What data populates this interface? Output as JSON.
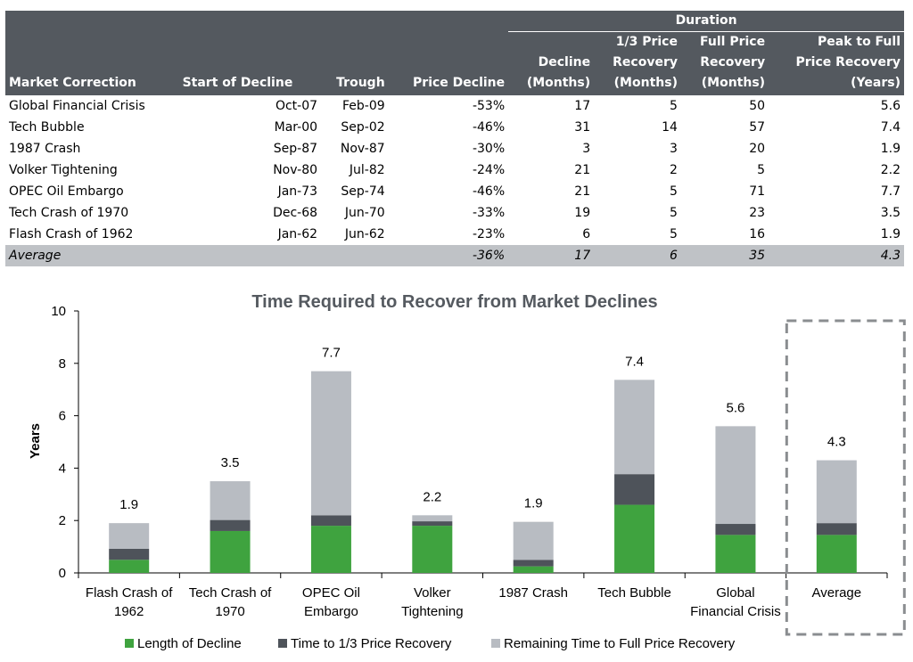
{
  "table": {
    "group_header": "Duration",
    "columns": [
      "Market Correction",
      "Start of Decline",
      "Trough",
      "Price Decline",
      [
        "Decline",
        "(Months)"
      ],
      [
        "1/3 Price",
        "Recovery",
        "(Months)"
      ],
      [
        "Full Price",
        "Recovery",
        "(Months)"
      ],
      [
        "Peak to Full",
        "Price Recovery",
        "(Years)"
      ]
    ],
    "rows": [
      [
        "Global Financial Crisis",
        "Oct-07",
        "Feb-09",
        "-53%",
        "17",
        "5",
        "50",
        "5.6"
      ],
      [
        "Tech Bubble",
        "Mar-00",
        "Sep-02",
        "-46%",
        "31",
        "14",
        "57",
        "7.4"
      ],
      [
        "1987 Crash",
        "Sep-87",
        "Nov-87",
        "-30%",
        "3",
        "3",
        "20",
        "1.9"
      ],
      [
        "Volker Tightening",
        "Nov-80",
        "Jul-82",
        "-24%",
        "21",
        "2",
        "5",
        "2.2"
      ],
      [
        "OPEC Oil Embargo",
        "Jan-73",
        "Sep-74",
        "-46%",
        "21",
        "5",
        "71",
        "7.7"
      ],
      [
        "Tech Crash of 1970",
        "Dec-68",
        "Jun-70",
        "-33%",
        "19",
        "5",
        "23",
        "3.5"
      ],
      [
        "Flash Crash of 1962",
        "Jan-62",
        "Jun-62",
        "-23%",
        "6",
        "5",
        "16",
        "1.9"
      ]
    ],
    "average": [
      "Average",
      "",
      "",
      "-36%",
      "17",
      "6",
      "35",
      "4.3"
    ]
  },
  "chart_data": {
    "type": "bar",
    "stacked": true,
    "title": "Time Required to Recover from Market Declines",
    "xlabel": "",
    "ylabel": "Years",
    "ylim": [
      0,
      10
    ],
    "yticks": [
      0,
      2,
      4,
      6,
      8,
      10
    ],
    "grid": false,
    "legend_position": "bottom",
    "categories": [
      [
        "Flash Crash of",
        "1962"
      ],
      [
        "Tech Crash of",
        "1970"
      ],
      [
        "OPEC Oil",
        "Embargo"
      ],
      [
        "Volker",
        "Tightening"
      ],
      [
        "1987 Crash"
      ],
      [
        "Tech Bubble"
      ],
      [
        "Global",
        "Financial Crisis"
      ],
      [
        "Average"
      ]
    ],
    "series": [
      {
        "name": "Length of Decline",
        "color": "#3fa33f",
        "values": [
          0.5,
          1.6,
          1.8,
          1.8,
          0.25,
          2.6,
          1.45,
          1.45
        ]
      },
      {
        "name": "Time to 1/3 Price Recovery",
        "color": "#4e535a",
        "values": [
          0.42,
          0.42,
          0.4,
          0.17,
          0.25,
          1.17,
          0.42,
          0.45
        ]
      },
      {
        "name": "Remaining Time to Full Price Recovery",
        "color": "#b8bcc2",
        "values": [
          0.98,
          1.48,
          5.5,
          0.23,
          1.45,
          3.6,
          3.73,
          2.4
        ]
      }
    ],
    "totals": [
      "1.9",
      "3.5",
      "7.7",
      "2.2",
      "1.9",
      "7.4",
      "5.6",
      "4.3"
    ],
    "highlight_category": "Average",
    "highlight_style": "dashed-box"
  }
}
